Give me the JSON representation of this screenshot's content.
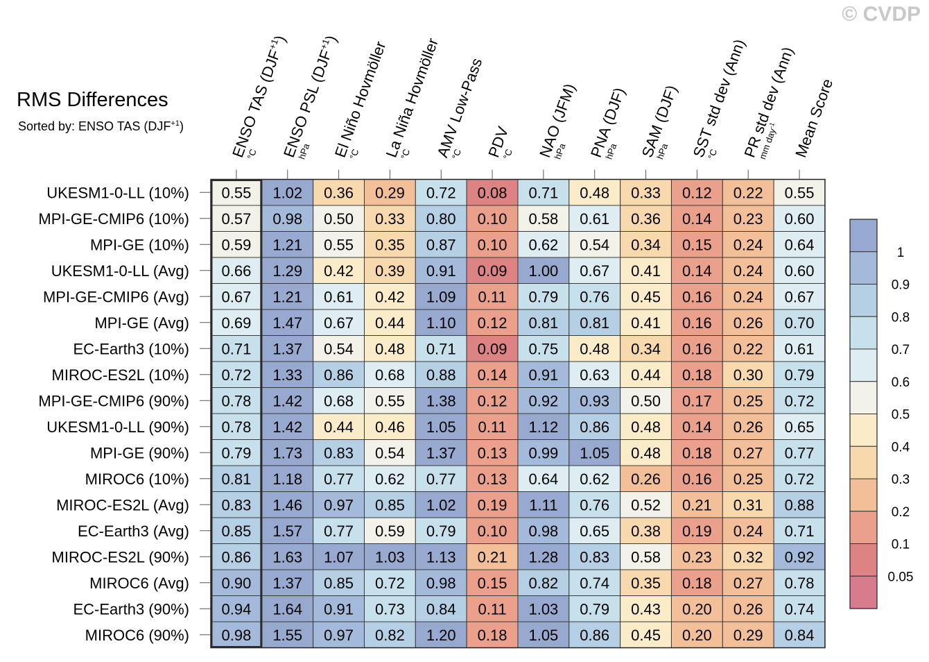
{
  "watermark": "© CVDP",
  "title": "RMS Differences",
  "subtitle": {
    "prefix": "Sorted by: ENSO TAS (DJF",
    "sup": "+1",
    "suffix": ")"
  },
  "chart_data": {
    "type": "heatmap",
    "title": "RMS Differences",
    "columns": [
      {
        "label": "ENSO TAS (DJF",
        "sup": "+1",
        "suffix": ")",
        "unit": "°C"
      },
      {
        "label": "ENSO PSL (DJF",
        "sup": "+1",
        "suffix": ")",
        "unit": "hPa"
      },
      {
        "label": "El Niño Hovmöller",
        "unit": "°C"
      },
      {
        "label": "La Niña Hovmöller",
        "unit": "°C"
      },
      {
        "label": "AMV Low-Pass",
        "unit": "°C"
      },
      {
        "label": "PDV",
        "unit": "°C"
      },
      {
        "label": "NAO (JFM)",
        "unit": "hPa"
      },
      {
        "label": "PNA (DJF)",
        "unit": "hPa"
      },
      {
        "label": "SAM (DJF)",
        "unit": "hPa"
      },
      {
        "label": "SST std dev (Ann)",
        "unit": "°C"
      },
      {
        "label": "PR std dev (Ann)",
        "unit": "mm day",
        "unit_sup": "-1"
      },
      {
        "label": "Mean Score",
        "unit": ""
      }
    ],
    "rows": [
      {
        "label": "UKESM1-0-LL (10%)",
        "values": [
          "0.55",
          "1.02",
          "0.36",
          "0.29",
          "0.72",
          "0.08",
          "0.71",
          "0.48",
          "0.33",
          "0.12",
          "0.22",
          "0.55"
        ]
      },
      {
        "label": "MPI-GE-CMIP6 (10%)",
        "values": [
          "0.57",
          "0.98",
          "0.50",
          "0.33",
          "0.80",
          "0.10",
          "0.58",
          "0.61",
          "0.36",
          "0.14",
          "0.23",
          "0.60"
        ]
      },
      {
        "label": "MPI-GE (10%)",
        "values": [
          "0.59",
          "1.21",
          "0.55",
          "0.35",
          "0.87",
          "0.10",
          "0.62",
          "0.54",
          "0.34",
          "0.15",
          "0.24",
          "0.64"
        ]
      },
      {
        "label": "UKESM1-0-LL (Avg)",
        "values": [
          "0.66",
          "1.29",
          "0.42",
          "0.39",
          "0.91",
          "0.09",
          "1.00",
          "0.67",
          "0.41",
          "0.14",
          "0.24",
          "0.60"
        ]
      },
      {
        "label": "MPI-GE-CMIP6 (Avg)",
        "values": [
          "0.67",
          "1.21",
          "0.61",
          "0.42",
          "1.09",
          "0.11",
          "0.79",
          "0.76",
          "0.45",
          "0.16",
          "0.24",
          "0.67"
        ]
      },
      {
        "label": "MPI-GE (Avg)",
        "values": [
          "0.69",
          "1.47",
          "0.67",
          "0.44",
          "1.10",
          "0.12",
          "0.81",
          "0.81",
          "0.41",
          "0.16",
          "0.26",
          "0.70"
        ]
      },
      {
        "label": "EC-Earth3 (10%)",
        "values": [
          "0.71",
          "1.37",
          "0.54",
          "0.48",
          "0.71",
          "0.09",
          "0.75",
          "0.48",
          "0.34",
          "0.16",
          "0.22",
          "0.61"
        ]
      },
      {
        "label": "MIROC-ES2L (10%)",
        "values": [
          "0.72",
          "1.33",
          "0.86",
          "0.68",
          "0.88",
          "0.14",
          "0.91",
          "0.63",
          "0.44",
          "0.18",
          "0.30",
          "0.79"
        ]
      },
      {
        "label": "MPI-GE-CMIP6 (90%)",
        "values": [
          "0.78",
          "1.42",
          "0.68",
          "0.55",
          "1.38",
          "0.12",
          "0.92",
          "0.93",
          "0.50",
          "0.17",
          "0.25",
          "0.72"
        ]
      },
      {
        "label": "UKESM1-0-LL (90%)",
        "values": [
          "0.78",
          "1.42",
          "0.44",
          "0.46",
          "1.05",
          "0.11",
          "1.12",
          "0.86",
          "0.48",
          "0.14",
          "0.26",
          "0.65"
        ]
      },
      {
        "label": "MPI-GE (90%)",
        "values": [
          "0.79",
          "1.73",
          "0.83",
          "0.54",
          "1.37",
          "0.13",
          "0.99",
          "1.05",
          "0.48",
          "0.18",
          "0.27",
          "0.77"
        ]
      },
      {
        "label": "MIROC6 (10%)",
        "values": [
          "0.81",
          "1.18",
          "0.77",
          "0.62",
          "0.77",
          "0.13",
          "0.64",
          "0.62",
          "0.26",
          "0.16",
          "0.25",
          "0.72"
        ]
      },
      {
        "label": "MIROC-ES2L (Avg)",
        "values": [
          "0.83",
          "1.46",
          "0.97",
          "0.85",
          "1.02",
          "0.19",
          "1.11",
          "0.76",
          "0.52",
          "0.21",
          "0.31",
          "0.88"
        ]
      },
      {
        "label": "EC-Earth3 (Avg)",
        "values": [
          "0.85",
          "1.57",
          "0.77",
          "0.59",
          "0.79",
          "0.10",
          "0.98",
          "0.65",
          "0.38",
          "0.19",
          "0.24",
          "0.71"
        ]
      },
      {
        "label": "MIROC-ES2L (90%)",
        "values": [
          "0.86",
          "1.63",
          "1.07",
          "1.03",
          "1.13",
          "0.21",
          "1.28",
          "0.83",
          "0.58",
          "0.23",
          "0.32",
          "0.92"
        ]
      },
      {
        "label": "MIROC6 (Avg)",
        "values": [
          "0.90",
          "1.37",
          "0.85",
          "0.72",
          "0.98",
          "0.15",
          "0.82",
          "0.74",
          "0.35",
          "0.18",
          "0.27",
          "0.78"
        ]
      },
      {
        "label": "EC-Earth3 (90%)",
        "values": [
          "0.94",
          "1.64",
          "0.91",
          "0.73",
          "0.84",
          "0.11",
          "1.03",
          "0.79",
          "0.43",
          "0.20",
          "0.26",
          "0.74"
        ]
      },
      {
        "label": "MIROC6 (90%)",
        "values": [
          "0.98",
          "1.55",
          "0.97",
          "0.82",
          "1.20",
          "0.18",
          "1.05",
          "0.86",
          "0.45",
          "0.20",
          "0.29",
          "0.84"
        ]
      }
    ],
    "sorted_column": 0,
    "colorbar": {
      "labels": [
        "1",
        "0.9",
        "0.8",
        "0.7",
        "0.6",
        "0.5",
        "0.4",
        "0.3",
        "0.2",
        "0.1",
        "0.05"
      ],
      "thresholds": [
        1,
        0.9,
        0.8,
        0.7,
        0.6,
        0.5,
        0.4,
        0.3,
        0.2,
        0.1,
        0.05
      ],
      "colors": [
        "#98a9cf",
        "#a4bada",
        "#b5cfe4",
        "#c7e1ec",
        "#deedf2",
        "#f2f2e8",
        "#fbecc9",
        "#f8d9ae",
        "#f3bf98",
        "#eba08b",
        "#de8383",
        "#d77b8d"
      ]
    }
  }
}
